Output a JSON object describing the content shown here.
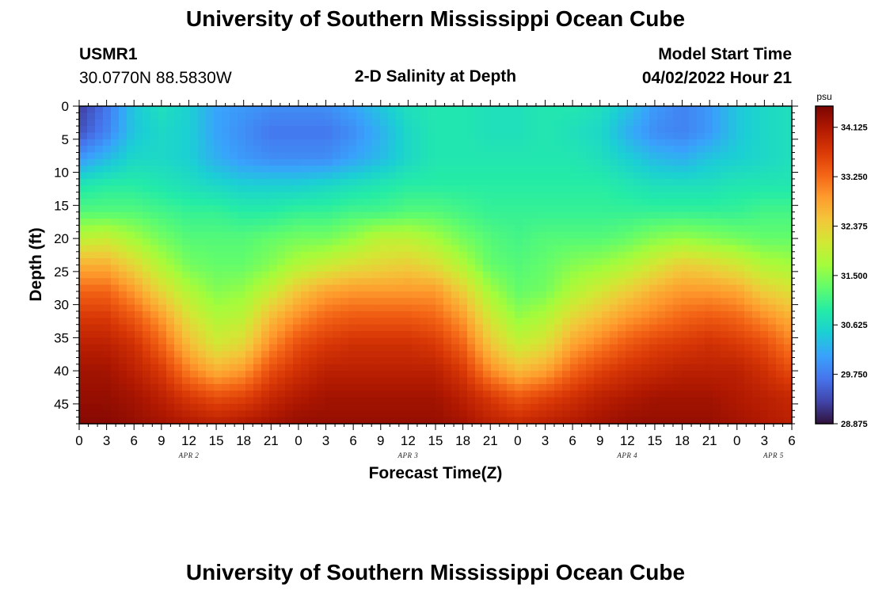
{
  "page": {
    "title": "University of Southern Mississippi Ocean Cube",
    "footer_title": "University of Southern Mississippi Ocean Cube",
    "station_id": "USMR1",
    "station_coords": "30.0770N  88.5830W",
    "plot_title": "2-D Salinity at Depth",
    "model_start_label": "Model Start Time",
    "model_start_value": "04/02/2022 Hour 21"
  },
  "colors": {
    "scale": [
      "#30123b",
      "#4145ab",
      "#4675ed",
      "#39a2fc",
      "#1bcfd4",
      "#24eca6",
      "#61fc6c",
      "#a4fc3b",
      "#d1e834",
      "#f3c63a",
      "#fe9b2d",
      "#f36315",
      "#d93806",
      "#b11901",
      "#7a0402"
    ]
  },
  "chart_data": {
    "type": "heatmap",
    "title": "2-D Salinity at Depth",
    "xlabel": "Forecast Time(Z)",
    "ylabel": "Depth (ft)",
    "colorbar_unit": "psu",
    "colorbar_ticks": [
      "34.125",
      "33.250",
      "32.375",
      "31.500",
      "30.625",
      "29.750",
      "28.875"
    ],
    "value_range": [
      28.875,
      34.5
    ],
    "y_ticks": [
      "0",
      "5",
      "10",
      "15",
      "20",
      "25",
      "30",
      "35",
      "40",
      "45"
    ],
    "ylim": [
      0,
      48
    ],
    "x_ticks": [
      "0",
      "3",
      "6",
      "9",
      "12",
      "15",
      "18",
      "21",
      "0",
      "3",
      "6",
      "9",
      "12",
      "15",
      "18",
      "21",
      "0",
      "3",
      "6",
      "9",
      "12",
      "15",
      "18",
      "21",
      "0",
      "3",
      "6"
    ],
    "x_range_hours": [
      0,
      78
    ],
    "date_labels": [
      {
        "label": "APR 2",
        "hour": 12
      },
      {
        "label": "APR 3",
        "hour": 36
      },
      {
        "label": "APR 4",
        "hour": 60
      },
      {
        "label": "APR 5",
        "hour": 76
      }
    ],
    "grid_hours": [
      0,
      3,
      6,
      9,
      12,
      15,
      18,
      21,
      24,
      27,
      30,
      33,
      36,
      39,
      42,
      45,
      48,
      51,
      54,
      57,
      60,
      63,
      66,
      69,
      72,
      75,
      78
    ],
    "grid_depths_ft": [
      0,
      4,
      8,
      12,
      16,
      20,
      24,
      28,
      32,
      36,
      40,
      44,
      48
    ],
    "salinity_psu": [
      [
        29.2,
        29.7,
        30.4,
        30.7,
        30.5,
        30.1,
        30.0,
        29.9,
        29.9,
        29.9,
        30.1,
        30.4,
        30.7,
        30.8,
        30.8,
        30.7,
        30.7,
        30.8,
        30.8,
        30.7,
        30.4,
        30.0,
        29.8,
        30.0,
        30.4,
        30.6,
        30.7
      ],
      [
        29.4,
        29.8,
        30.4,
        30.6,
        30.5,
        30.1,
        29.9,
        29.7,
        29.7,
        29.7,
        29.9,
        30.2,
        30.6,
        30.8,
        30.8,
        30.7,
        30.7,
        30.8,
        30.7,
        30.6,
        30.2,
        29.9,
        29.8,
        30.0,
        30.4,
        30.6,
        30.7
      ],
      [
        30.0,
        30.3,
        30.6,
        30.6,
        30.5,
        30.2,
        30.0,
        29.9,
        29.9,
        29.9,
        30.1,
        30.3,
        30.6,
        30.8,
        30.8,
        30.8,
        30.8,
        30.8,
        30.8,
        30.7,
        30.5,
        30.3,
        30.2,
        30.4,
        30.5,
        30.6,
        30.7
      ],
      [
        30.8,
        30.9,
        30.9,
        30.8,
        30.7,
        30.6,
        30.5,
        30.5,
        30.5,
        30.6,
        30.7,
        30.8,
        30.9,
        30.9,
        30.9,
        30.9,
        30.9,
        30.9,
        30.9,
        30.9,
        30.8,
        30.7,
        30.7,
        30.7,
        30.8,
        30.8,
        30.8
      ],
      [
        31.2,
        31.2,
        31.2,
        31.1,
        31.0,
        31.0,
        30.9,
        30.9,
        31.0,
        31.0,
        31.1,
        31.1,
        31.2,
        31.2,
        31.1,
        31.0,
        31.0,
        31.0,
        31.0,
        31.0,
        31.0,
        31.0,
        31.0,
        31.0,
        31.0,
        31.1,
        31.1
      ],
      [
        31.9,
        32.0,
        31.7,
        31.4,
        31.2,
        31.2,
        31.2,
        31.3,
        31.4,
        31.4,
        31.6,
        31.9,
        31.9,
        31.7,
        31.4,
        31.2,
        31.1,
        31.2,
        31.2,
        31.2,
        31.3,
        31.5,
        31.6,
        31.5,
        31.4,
        31.3,
        31.3
      ],
      [
        32.7,
        32.7,
        32.3,
        31.8,
        31.4,
        31.3,
        31.3,
        31.5,
        31.8,
        32.0,
        32.2,
        32.3,
        32.4,
        32.2,
        31.8,
        31.3,
        31.2,
        31.3,
        31.5,
        31.6,
        31.8,
        32.1,
        32.4,
        32.3,
        32.1,
        31.8,
        31.7
      ],
      [
        33.3,
        33.3,
        32.9,
        32.3,
        31.8,
        31.5,
        31.6,
        32.0,
        32.5,
        32.8,
        32.9,
        32.9,
        32.9,
        32.9,
        32.4,
        31.7,
        31.3,
        31.4,
        31.8,
        32.1,
        32.4,
        32.7,
        32.9,
        32.9,
        32.8,
        32.4,
        32.2
      ],
      [
        33.7,
        33.7,
        33.4,
        32.9,
        32.2,
        31.8,
        31.9,
        32.6,
        33.0,
        33.3,
        33.4,
        33.4,
        33.4,
        33.3,
        32.9,
        32.1,
        31.6,
        31.8,
        32.3,
        32.6,
        32.9,
        33.1,
        33.3,
        33.4,
        33.3,
        33.0,
        32.7
      ],
      [
        34.0,
        34.0,
        33.8,
        33.3,
        32.6,
        32.1,
        32.3,
        33.0,
        33.5,
        33.7,
        33.8,
        33.8,
        33.8,
        33.7,
        33.3,
        32.5,
        32.0,
        32.2,
        32.8,
        33.1,
        33.4,
        33.6,
        33.7,
        33.8,
        33.7,
        33.5,
        33.1
      ],
      [
        34.2,
        34.2,
        34.0,
        33.7,
        33.1,
        32.7,
        32.9,
        33.5,
        33.8,
        34.0,
        34.0,
        34.0,
        34.0,
        34.0,
        33.7,
        33.0,
        32.6,
        32.8,
        33.3,
        33.6,
        33.8,
        33.9,
        34.0,
        34.0,
        34.0,
        33.8,
        33.5
      ],
      [
        34.3,
        34.3,
        34.2,
        34.0,
        33.7,
        33.5,
        33.6,
        33.9,
        34.1,
        34.2,
        34.2,
        34.2,
        34.2,
        34.2,
        34.0,
        33.7,
        33.4,
        33.6,
        33.8,
        34.0,
        34.1,
        34.2,
        34.2,
        34.2,
        34.1,
        34.0,
        33.9
      ],
      [
        34.4,
        34.4,
        34.3,
        34.2,
        34.1,
        34.0,
        34.1,
        34.2,
        34.3,
        34.3,
        34.3,
        34.3,
        34.3,
        34.3,
        34.2,
        34.0,
        33.9,
        34.0,
        34.1,
        34.2,
        34.3,
        34.3,
        34.3,
        34.3,
        34.2,
        34.1,
        34.0
      ]
    ]
  }
}
